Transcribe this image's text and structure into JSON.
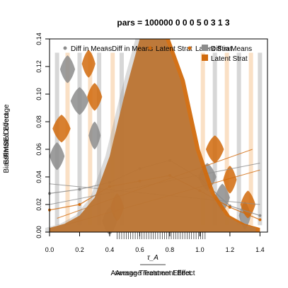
{
  "chart_data": {
    "type": "line",
    "title": "pars = 100000 0 0 0 5 0 3 1 3",
    "xlabel_main": "Average Treatment Effect",
    "xlabel_overlay": "Average Treatment Effect",
    "xlabel_math": "τ_A",
    "ylabel": "Bias/RMSE/Coverage",
    "ylabel_overlay": "Estimated Effect",
    "legend_position": "top-right",
    "legend": [
      {
        "label": "Diff in Means",
        "marker": "point",
        "color": "#8c8c8c"
      },
      {
        "label": "Diff in Means",
        "marker": "point",
        "color": "#8c8c8c"
      },
      {
        "label": "Latent Strat",
        "marker": "point",
        "color": "#d16a0c"
      },
      {
        "label": "Latent Strat",
        "marker": "point",
        "color": "#d16a0c"
      },
      {
        "label": "Diff in Means",
        "marker": "square",
        "color": "#8c8c8c"
      },
      {
        "label": "Latent Strat",
        "marker": "square",
        "color": "#d16a0c"
      }
    ],
    "x_tick_labels": [
      "0.0",
      "0.2",
      "0.4",
      "0.6",
      "0.8",
      "1.0",
      "1.2",
      "1.4"
    ],
    "y_tick_labels": [
      "0.00",
      "0.02",
      "0.04",
      "0.06",
      "0.08",
      "0.10",
      "0.12",
      "0.14"
    ],
    "xlim": [
      0,
      1.45
    ],
    "ylim": [
      0,
      0.14
    ],
    "colors": {
      "diff_in_means": "#8c8c8c",
      "latent_strat": "#d16a0c",
      "latent_strat_light": "#f2a65a"
    },
    "series": [
      {
        "name": "Diff in Means",
        "x": [
          0.0,
          0.2,
          0.4,
          0.6,
          0.8,
          1.0,
          1.2,
          1.4
        ],
        "values": [
          0.028,
          0.031,
          0.036,
          0.046,
          0.052,
          0.039,
          0.019,
          0.012
        ]
      },
      {
        "name": "Latent Strat",
        "x": [
          0.0,
          0.2,
          0.4,
          0.6,
          0.8,
          1.0,
          1.2,
          1.4
        ],
        "values": [
          0.016,
          0.02,
          0.033,
          0.037,
          0.041,
          0.03,
          0.018,
          0.009
        ]
      }
    ],
    "density_curve": {
      "name": "Latent Strat",
      "x": [
        0.0,
        0.1,
        0.2,
        0.3,
        0.4,
        0.5,
        0.6,
        0.7,
        0.8,
        0.9,
        1.0,
        1.1,
        1.2,
        1.3,
        1.4
      ],
      "values": [
        0.003,
        0.006,
        0.012,
        0.025,
        0.055,
        0.1,
        0.14,
        0.14,
        0.14,
        0.11,
        0.06,
        0.028,
        0.012,
        0.006,
        0.003
      ]
    },
    "violins": {
      "diff_in_means": [
        {
          "x": 0.12,
          "y": 0.118,
          "w": 0.1
        },
        {
          "x": 0.2,
          "y": 0.095,
          "w": 0.12
        },
        {
          "x": 0.3,
          "y": 0.07,
          "w": 0.08
        },
        {
          "x": 0.05,
          "y": 0.055,
          "w": 0.1
        },
        {
          "x": 1.05,
          "y": 0.04,
          "w": 0.12
        },
        {
          "x": 1.15,
          "y": 0.025,
          "w": 0.1
        },
        {
          "x": 1.3,
          "y": 0.012,
          "w": 0.08
        },
        {
          "x": 0.4,
          "y": 0.008,
          "w": 0.1
        }
      ],
      "latent_strat": [
        {
          "x": 0.26,
          "y": 0.122,
          "w": 0.09
        },
        {
          "x": 0.3,
          "y": 0.098,
          "w": 0.1
        },
        {
          "x": 0.08,
          "y": 0.075,
          "w": 0.12
        },
        {
          "x": 0.45,
          "y": 0.018,
          "w": 0.09
        },
        {
          "x": 1.1,
          "y": 0.06,
          "w": 0.12
        },
        {
          "x": 1.2,
          "y": 0.038,
          "w": 0.09
        },
        {
          "x": 1.32,
          "y": 0.02,
          "w": 0.1
        }
      ]
    }
  }
}
